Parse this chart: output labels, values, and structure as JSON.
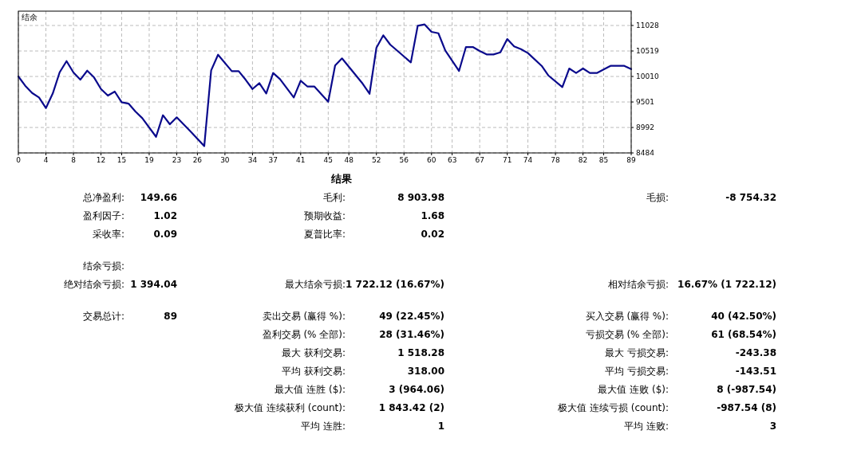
{
  "chart_data": [
    {
      "type": "line",
      "title": "结余",
      "x": [
        0,
        1,
        2,
        3,
        4,
        5,
        6,
        7,
        8,
        9,
        10,
        11,
        12,
        13,
        14,
        15,
        16,
        17,
        18,
        20,
        21,
        22,
        23,
        25,
        27,
        28,
        29,
        31,
        32,
        33,
        34,
        35,
        36,
        37,
        38,
        40,
        41,
        42,
        43,
        45,
        46,
        47,
        50,
        51,
        52,
        53,
        54,
        57,
        58,
        59,
        60,
        61,
        62,
        64,
        65,
        66,
        67,
        68,
        69,
        70,
        71,
        72,
        73,
        74,
        76,
        77,
        79,
        80,
        81,
        82,
        83,
        84,
        86,
        87,
        88,
        89
      ],
      "series": [
        {
          "color": "#0a0a8c",
          "values": [
            10010,
            9824,
            9681,
            9592,
            9379,
            9671,
            10094,
            10317,
            10089,
            9946,
            10126,
            9989,
            9760,
            9628,
            9708,
            9496,
            9469,
            9310,
            9178,
            8806,
            9236,
            9056,
            9194,
            8913,
            8621,
            10132,
            10444,
            10116,
            10116,
            9946,
            9760,
            9878,
            9671,
            10079,
            9957,
            9592,
            9925,
            9808,
            9808,
            9506,
            10228,
            10371,
            9867,
            9665,
            10583,
            10832,
            10646,
            10291,
            11023,
            11049,
            10900,
            10873,
            10530,
            10121,
            10598,
            10598,
            10519,
            10450,
            10450,
            10492,
            10757,
            10609,
            10556,
            10477,
            10222,
            10026,
            9798,
            10169,
            10079,
            10169,
            10079,
            10079,
            10222,
            10222,
            10222,
            10158
          ]
        }
      ],
      "xlim": [
        0,
        89
      ],
      "ylim": [
        8484,
        11314
      ],
      "xticks": [
        0,
        4,
        8,
        12,
        15,
        19,
        23,
        26,
        30,
        34,
        37,
        41,
        45,
        48,
        52,
        56,
        60,
        63,
        67,
        71,
        74,
        78,
        82,
        85,
        89
      ],
      "yticks": [
        8484,
        8992,
        9501,
        10010,
        10519,
        11028
      ],
      "grid": true,
      "marker": "none",
      "line_style": "solid"
    },
    {
      "type": "other",
      "title": "结果",
      "annotations": [
        "总净盈利:",
        "149.66",
        "毛利:",
        "8 903.98",
        "毛损:",
        "-8 754.32",
        "盈利因子:",
        "1.02",
        "预期收益:",
        "1.68",
        "采收率:",
        "0.09",
        "夏普比率:",
        "0.02",
        "结余亏损:",
        "绝对结余亏损:",
        "1 394.04",
        "最大结余亏损:",
        "1 722.12 (16.67%)",
        "相对结余亏损:",
        "16.67% (1 722.12)",
        "交易总计:",
        "89",
        "卖出交易 (赢得 %):",
        "49 (22.45%)",
        "买入交易 (赢得 %):",
        "40 (42.50%)",
        "盈利交易 (% 全部):",
        "28 (31.46%)",
        "亏损交易 (% 全部):",
        "61 (68.54%)",
        "最大 获利交易:",
        "1 518.28",
        "最大 亏损交易:",
        "-243.38",
        "平均 获利交易:",
        "318.00",
        "平均 亏损交易:",
        "-143.51",
        "最大值 连胜 ($):",
        "3 (964.06)",
        "最大值 连败 ($):",
        "8 (-987.54)",
        "极大值 连续获利 (count):",
        "1 843.42 (2)",
        "极大值 连续亏损 (count):",
        "-987.54 (8)",
        "平均 连胜:",
        "1",
        "平均 连败:",
        "3"
      ]
    }
  ]
}
